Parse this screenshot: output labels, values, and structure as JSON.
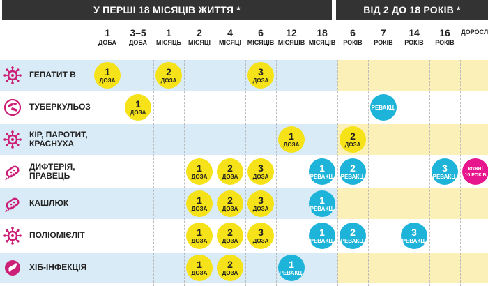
{
  "header": {
    "left_title": "У перші 18 місяців життя *",
    "right_title": "Від 2 до 18 років *"
  },
  "columns": [
    {
      "num": "1",
      "unit": "доба"
    },
    {
      "num": "3–5",
      "unit": "доба"
    },
    {
      "num": "1",
      "unit": "місяць"
    },
    {
      "num": "2",
      "unit": "місяці"
    },
    {
      "num": "4",
      "unit": "місяці"
    },
    {
      "num": "6",
      "unit": "місяців"
    },
    {
      "num": "12",
      "unit": "місяців"
    },
    {
      "num": "18",
      "unit": "місяців"
    },
    {
      "num": "6",
      "unit": "років"
    },
    {
      "num": "7",
      "unit": "років"
    },
    {
      "num": "14",
      "unit": "років"
    },
    {
      "num": "16",
      "unit": "років"
    },
    {
      "num": "",
      "unit": "дорослі"
    }
  ],
  "rows": [
    {
      "label": "Гепатит В",
      "icon": "virus-icon",
      "doses": [
        {
          "col": 0,
          "num": "1",
          "word": "доза",
          "kind": "y"
        },
        {
          "col": 2,
          "num": "2",
          "word": "доза",
          "kind": "y"
        },
        {
          "col": 5,
          "num": "3",
          "word": "доза",
          "kind": "y"
        }
      ]
    },
    {
      "label": "Туберкульоз",
      "icon": "bacteria-icon",
      "doses": [
        {
          "col": 1,
          "num": "1",
          "word": "доза",
          "kind": "y"
        },
        {
          "col": 9,
          "num": "",
          "word": "ревакц.",
          "kind": "b"
        }
      ]
    },
    {
      "label": "Кір, паротит, краснуха",
      "icon": "virus-spiky-icon",
      "doses": [
        {
          "col": 6,
          "num": "1",
          "word": "доза",
          "kind": "y"
        },
        {
          "col": 8,
          "num": "2",
          "word": "доза",
          "kind": "y"
        }
      ]
    },
    {
      "label": "Дифтерія, правець",
      "icon": "bacillus-icon",
      "doses": [
        {
          "col": 3,
          "num": "1",
          "word": "доза",
          "kind": "y"
        },
        {
          "col": 4,
          "num": "2",
          "word": "доза",
          "kind": "y"
        },
        {
          "col": 5,
          "num": "3",
          "word": "доза",
          "kind": "y"
        },
        {
          "col": 7,
          "num": "1",
          "word": "ревакц.",
          "kind": "b"
        },
        {
          "col": 8,
          "num": "2",
          "word": "ревакц.",
          "kind": "b"
        },
        {
          "col": 11,
          "num": "3",
          "word": "ревакц.",
          "kind": "b"
        },
        {
          "col": 12,
          "num": "кожні",
          "word": "10 років",
          "kind": "p"
        }
      ]
    },
    {
      "label": "Кашлюк",
      "icon": "bacterium-icon",
      "doses": [
        {
          "col": 3,
          "num": "1",
          "word": "доза",
          "kind": "y"
        },
        {
          "col": 4,
          "num": "2",
          "word": "доза",
          "kind": "y"
        },
        {
          "col": 5,
          "num": "3",
          "word": "доза",
          "kind": "y"
        },
        {
          "col": 7,
          "num": "1",
          "word": "ревакц.",
          "kind": "b"
        }
      ]
    },
    {
      "label": "Поліомієліт",
      "icon": "virus-icon",
      "doses": [
        {
          "col": 3,
          "num": "1",
          "word": "доза",
          "kind": "y"
        },
        {
          "col": 4,
          "num": "2",
          "word": "доза",
          "kind": "y"
        },
        {
          "col": 5,
          "num": "3",
          "word": "доза",
          "kind": "y"
        },
        {
          "col": 7,
          "num": "1",
          "word": "ревакц.",
          "kind": "b"
        },
        {
          "col": 8,
          "num": "2",
          "word": "ревакц.",
          "kind": "b"
        },
        {
          "col": 10,
          "num": "3",
          "word": "ревакц.",
          "kind": "b"
        }
      ]
    },
    {
      "label": "Хіб-інфекція",
      "icon": "capsule-bacteria-icon",
      "doses": [
        {
          "col": 3,
          "num": "1",
          "word": "доза",
          "kind": "y"
        },
        {
          "col": 4,
          "num": "2",
          "word": "доза",
          "kind": "y"
        },
        {
          "col": 6,
          "num": "1",
          "word": "ревакц.",
          "kind": "b"
        }
      ]
    }
  ],
  "colors": {
    "header_bg": "#333333",
    "row_tint_blue": "#d9ebf6",
    "row_tint_yellow": "#fbf0b8",
    "dose_yellow": "#f6e219",
    "revaccination_blue": "#1eb3d8",
    "adult_pink": "#e8168c",
    "icon_magenta": "#cc1f78"
  }
}
